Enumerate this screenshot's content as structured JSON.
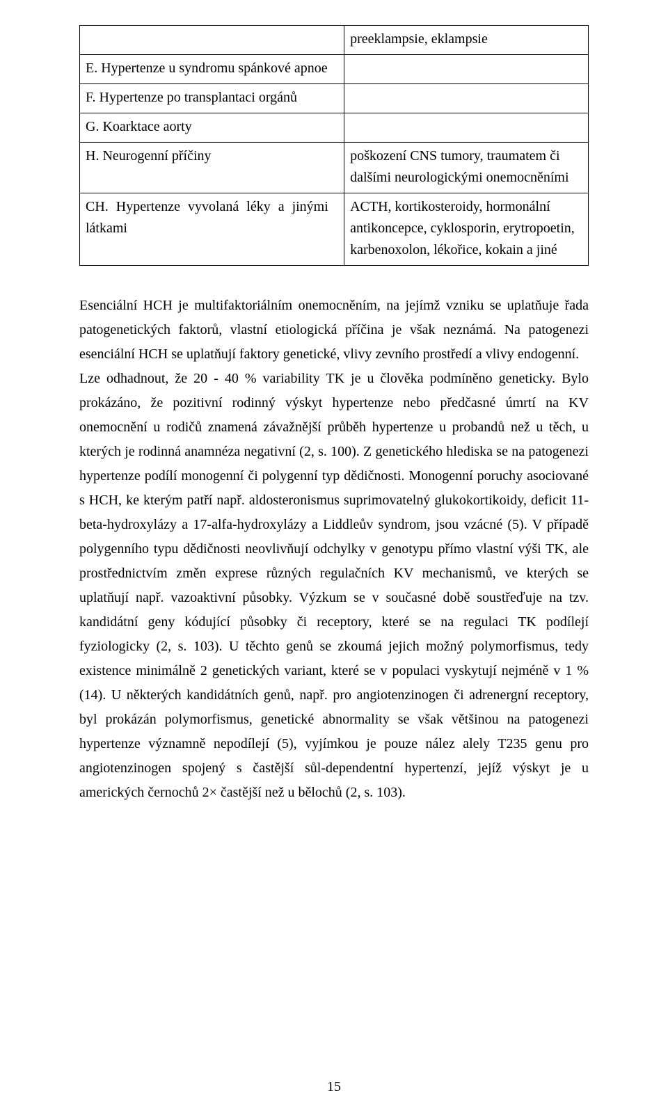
{
  "table": {
    "border_color": "#000000",
    "rows": [
      {
        "left": "",
        "right": "preeklampsie, eklampsie"
      },
      {
        "left": "E. Hypertenze u syndromu spánkové apnoe",
        "right": ""
      },
      {
        "left": "F. Hypertenze po transplantaci orgánů",
        "right": ""
      },
      {
        "left": "G. Koarktace aorty",
        "right": ""
      },
      {
        "left": "H. Neurogenní příčiny",
        "right": "poškození CNS tumory, traumatem či dalšími neurologickými onemocněními"
      },
      {
        "left": "CH. Hypertenze vyvolaná léky a jinými látkami",
        "right": "ACTH, kortikosteroidy, hormonální antikoncepce, cyklosporin, erytropoetin, karbenoxolon, lékořice, kokain a jiné"
      }
    ]
  },
  "body": {
    "text": "Esenciální HCH je multifaktoriálním onemocněním, na jejímž vzniku se uplatňuje řada patogenetických faktorů, vlastní etiologická příčina je však neznámá. Na patogenezi esenciální HCH se uplatňují faktory genetické, vlivy zevního prostředí a vlivy endogenní.\nLze odhadnout, že 20 - 40 % variability TK je u člověka podmíněno geneticky. Bylo prokázáno, že pozitivní rodinný výskyt hypertenze nebo předčasné úmrtí na KV onemocnění u rodičů znamená závažnější průběh hypertenze u probandů než u těch, u kterých je rodinná anamnéza negativní (2, s. 100). Z genetického hlediska se na patogenezi hypertenze podílí monogenní či polygenní typ dědičnosti. Monogenní poruchy asociované s HCH, ke kterým patří např. aldosteronismus suprimovatelný glukokortikoidy, deficit 11-beta-hydroxylázy a 17-alfa-hydroxylázy a Liddleův syndrom, jsou vzácné (5). V případě polygenního typu dědičnosti neovlivňují odchylky v genotypu přímo vlastní výši TK, ale prostřednictvím změn exprese různých regulačních KV mechanismů, ve kterých se uplatňují např. vazoaktivní působky. Výzkum se v současné době soustřeďuje na tzv. kandidátní geny kódující působky či receptory, které se na regulaci TK podílejí fyziologicky (2, s. 103). U těchto genů se zkoumá jejich možný polymorfismus, tedy existence minimálně 2 genetických variant, které se v populaci vyskytují nejméně v 1 % (14). U některých kandidátních genů, např. pro angiotenzinogen či adrenergní receptory, byl prokázán polymorfismus, genetické abnormality se však většinou na patogenezi hypertenze významně nepodílejí (5), vyjímkou je pouze nález alely T235 genu pro angiotenzinogen spojený s častější sůl-dependentní hypertenzí, jejíž výskyt je u amerických černochů 2× častější než u bělochů (2, s. 103)."
  },
  "page_number": "15",
  "style": {
    "font_family": "Times New Roman",
    "font_size_pt": 15,
    "text_color": "#000000",
    "background_color": "#ffffff",
    "line_height": 1.75,
    "justify": true
  }
}
